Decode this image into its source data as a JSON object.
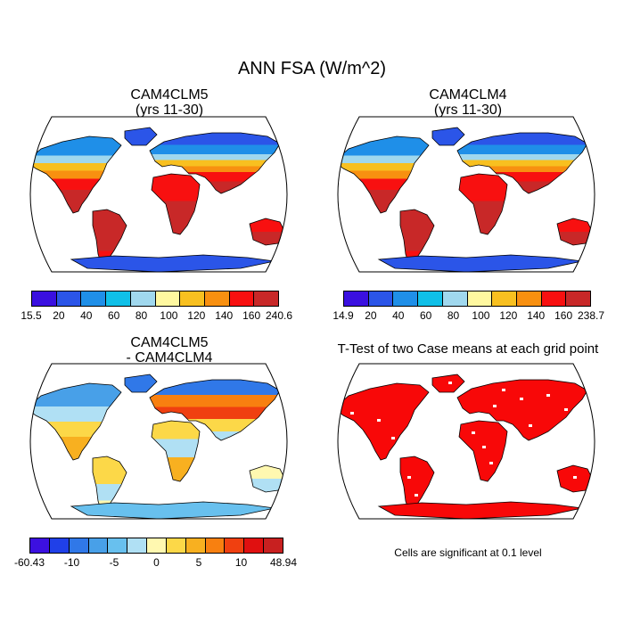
{
  "figure": {
    "title": "ANN FSA (W/m^2)",
    "panels": {
      "top_left": {
        "title_line1": "CAM4CLM5",
        "title_line2": "(yrs 11-30)"
      },
      "top_right": {
        "title_line1": "CAM4CLM4",
        "title_line2": "(yrs 11-30)"
      },
      "bottom_left": {
        "title_line1": "CAM4CLM5",
        "title_line2": "- CAM4CLM4"
      },
      "bottom_right": {
        "title": "T-Test of two Case means at each grid point",
        "note": "Cells are significant at 0.1 level"
      }
    }
  },
  "colorbars": {
    "abs_colors": [
      "#3a10e0",
      "#2b55e8",
      "#1f8fe8",
      "#10c0e8",
      "#a0d8ee",
      "#fff8a0",
      "#f8c020",
      "#f89010",
      "#f81010",
      "#c82828"
    ],
    "diff_colors": [
      "#3c10e0",
      "#2040e8",
      "#3078e8",
      "#48a0e8",
      "#68c0ee",
      "#b0e0f4",
      "#fff8b0",
      "#fcd848",
      "#f8b020",
      "#f88010",
      "#f04010",
      "#e01010",
      "#c82020"
    ],
    "clm5_labels": [
      "15.5",
      "20",
      "40",
      "60",
      "80",
      "100",
      "120",
      "140",
      "160",
      "240.6"
    ],
    "clm4_labels": [
      "14.9",
      "20",
      "40",
      "60",
      "80",
      "100",
      "120",
      "140",
      "160",
      "238.7"
    ],
    "diff_labels": [
      "-60.43",
      "-10",
      "-5",
      "0",
      "5",
      "10",
      "48.94"
    ]
  },
  "chart_data": {
    "type": "heatmap",
    "title": "ANN FSA (W/m^2)",
    "variable": "FSA",
    "units": "W/m^2",
    "projection": "Robinson",
    "panels": [
      {
        "name": "CAM4CLM5 (yrs 11-30)",
        "range": [
          15.5,
          240.6
        ],
        "contour_levels": [
          20,
          40,
          60,
          80,
          100,
          120,
          140,
          160
        ]
      },
      {
        "name": "CAM4CLM4 (yrs 11-30)",
        "range": [
          14.9,
          238.7
        ],
        "contour_levels": [
          20,
          40,
          60,
          80,
          100,
          120,
          140,
          160
        ]
      },
      {
        "name": "CAM4CLM5 - CAM4CLM4",
        "range": [
          -60.43,
          48.94
        ],
        "contour_levels": [
          -10,
          -5,
          0,
          5,
          10
        ]
      },
      {
        "name": "T-Test of two Case means at each grid point",
        "significance_level": 0.1
      }
    ]
  }
}
